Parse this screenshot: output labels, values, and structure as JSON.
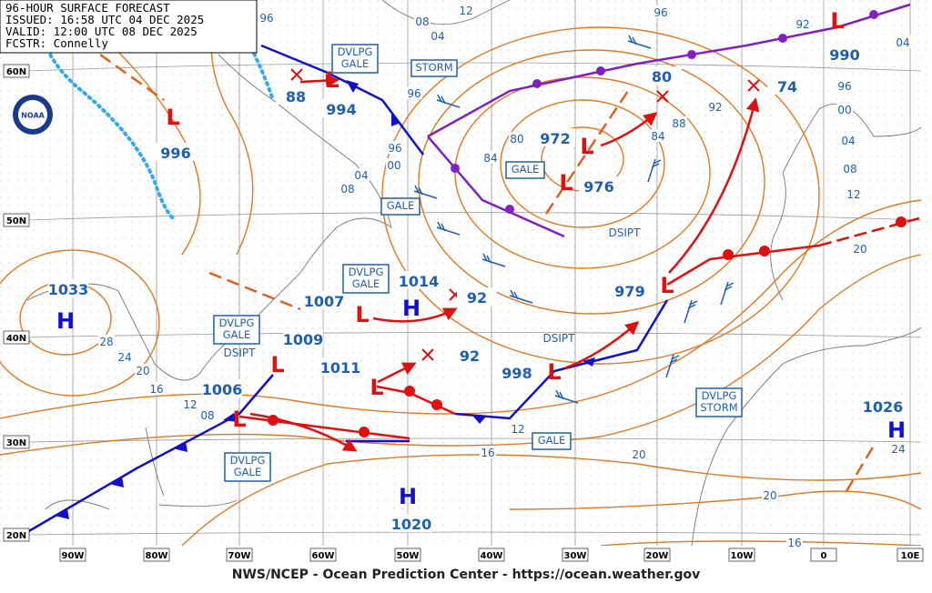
{
  "header": {
    "lines": [
      "96-HOUR SURFACE FORECAST",
      "ISSUED: 16:58 UTC 04 DEC 2025",
      "VALID:  12:00 UTC 08 DEC 2025",
      "FCSTR:  Connelly"
    ]
  },
  "logo": "NOAA",
  "footer": "NWS/NCEP - Ocean Prediction Center - https://ocean.weather.gov",
  "lat_labels": [
    "60N",
    "50N",
    "40N",
    "30N",
    "20N"
  ],
  "lon_labels": [
    "90W",
    "80W",
    "70W",
    "60W",
    "50W",
    "40W",
    "30W",
    "20W",
    "10W",
    "0",
    "10E"
  ],
  "centers": [
    {
      "symbol": "L",
      "pressure": "996"
    },
    {
      "symbol": "L",
      "pressure": "994"
    },
    {
      "pressure": "88"
    },
    {
      "symbol": "L",
      "pressure": "972"
    },
    {
      "symbol": "L",
      "pressure": "976"
    },
    {
      "pressure": "80"
    },
    {
      "pressure": "74"
    },
    {
      "symbol": "L",
      "pressure": "990"
    },
    {
      "symbol": "H",
      "pressure": "1033"
    },
    {
      "symbol": "L",
      "pressure": "1007"
    },
    {
      "symbol": "H",
      "pressure": "1014"
    },
    {
      "pressure": "92"
    },
    {
      "symbol": "L",
      "pressure": "1009"
    },
    {
      "symbol": "L",
      "pressure": "1011"
    },
    {
      "pressure": "92"
    },
    {
      "symbol": "L",
      "pressure": "998"
    },
    {
      "symbol": "L",
      "pressure": "979"
    },
    {
      "symbol": "L",
      "pressure": "1006"
    },
    {
      "symbol": "H",
      "pressure": "1020"
    },
    {
      "symbol": "H",
      "pressure": "1026"
    }
  ],
  "warnings": [
    {
      "lines": [
        "DVLPG",
        "GALE"
      ]
    },
    {
      "lines": [
        "STORM"
      ]
    },
    {
      "lines": [
        "GALE"
      ]
    },
    {
      "lines": [
        "GALE"
      ]
    },
    {
      "lines": [
        "DVLPG",
        "GALE"
      ]
    },
    {
      "lines": [
        "DVLPG",
        "GALE"
      ]
    },
    {
      "lines": [
        "DVLPG",
        "GALE"
      ]
    },
    {
      "lines": [
        "GALE"
      ]
    },
    {
      "lines": [
        "DVLPG",
        "STORM"
      ]
    }
  ],
  "dsipt": [
    "DSIPT",
    "DSIPT",
    "DSIPT"
  ],
  "isobar_labels": [
    "96",
    "08",
    "12",
    "04",
    "96",
    "92",
    "04",
    "96",
    "00",
    "04",
    "08",
    "12",
    "20",
    "96",
    "96",
    "00",
    "04",
    "08",
    "84",
    "80",
    "84",
    "88",
    "92",
    "28",
    "24",
    "20",
    "16",
    "12",
    "08",
    "12",
    "16",
    "20",
    "20",
    "24",
    "16"
  ]
}
